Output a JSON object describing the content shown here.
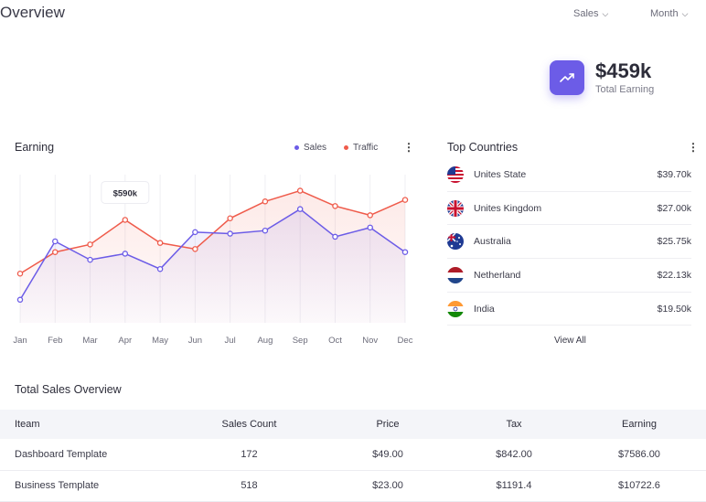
{
  "header": {
    "title": "Overview",
    "sales_dropdown": "Sales",
    "month_dropdown": "Month"
  },
  "total_earning": {
    "value": "$459k",
    "label": "Total Earning"
  },
  "earning_card": {
    "title": "Earning",
    "legend": [
      {
        "name": "Sales",
        "color": "#6c5ce7"
      },
      {
        "name": "Traffic",
        "color": "#ef5b4b"
      }
    ]
  },
  "chart_data": {
    "type": "line",
    "x": [
      "Jan",
      "Feb",
      "Mar",
      "Apr",
      "May",
      "Jun",
      "Jul",
      "Aug",
      "Sep",
      "Oct",
      "Nov",
      "Dec"
    ],
    "series": [
      {
        "name": "Sales",
        "color": "#6c5ce7",
        "values": [
          15,
          53,
          41,
          45,
          35,
          59,
          58,
          60,
          74,
          56,
          62,
          46
        ]
      },
      {
        "name": "Traffic",
        "color": "#ef5b4b",
        "values": [
          32,
          46,
          51,
          67,
          52,
          48,
          68,
          79,
          86,
          76,
          70,
          80
        ]
      }
    ],
    "ylim": [
      0,
      100
    ],
    "annotation": {
      "x": "Apr",
      "series": "Traffic",
      "text": "$590k"
    },
    "grid": "vertical"
  },
  "top_countries": {
    "title": "Top Countries",
    "items": [
      {
        "name": "Unites State",
        "value": "$39.70k",
        "flag": "us-flag"
      },
      {
        "name": "Unites Kingdom",
        "value": "$27.00k",
        "flag": "uk-flag"
      },
      {
        "name": "Australia",
        "value": "$25.75k",
        "flag": "au-flag"
      },
      {
        "name": "Netherland",
        "value": "$22.13k",
        "flag": "nl-flag"
      },
      {
        "name": "India",
        "value": "$19.50k",
        "flag": "in-flag"
      }
    ],
    "view_all": "View All"
  },
  "sales_overview": {
    "title": "Total Sales Overview",
    "columns": [
      "Iteam",
      "Sales Count",
      "Price",
      "Tax",
      "Earning"
    ],
    "rows": [
      [
        "Dashboard Template",
        "172",
        "$49.00",
        "$842.00",
        "$7586.00"
      ],
      [
        "Business Template",
        "518",
        "$23.00",
        "$1191.4",
        "$10722.6"
      ]
    ]
  }
}
